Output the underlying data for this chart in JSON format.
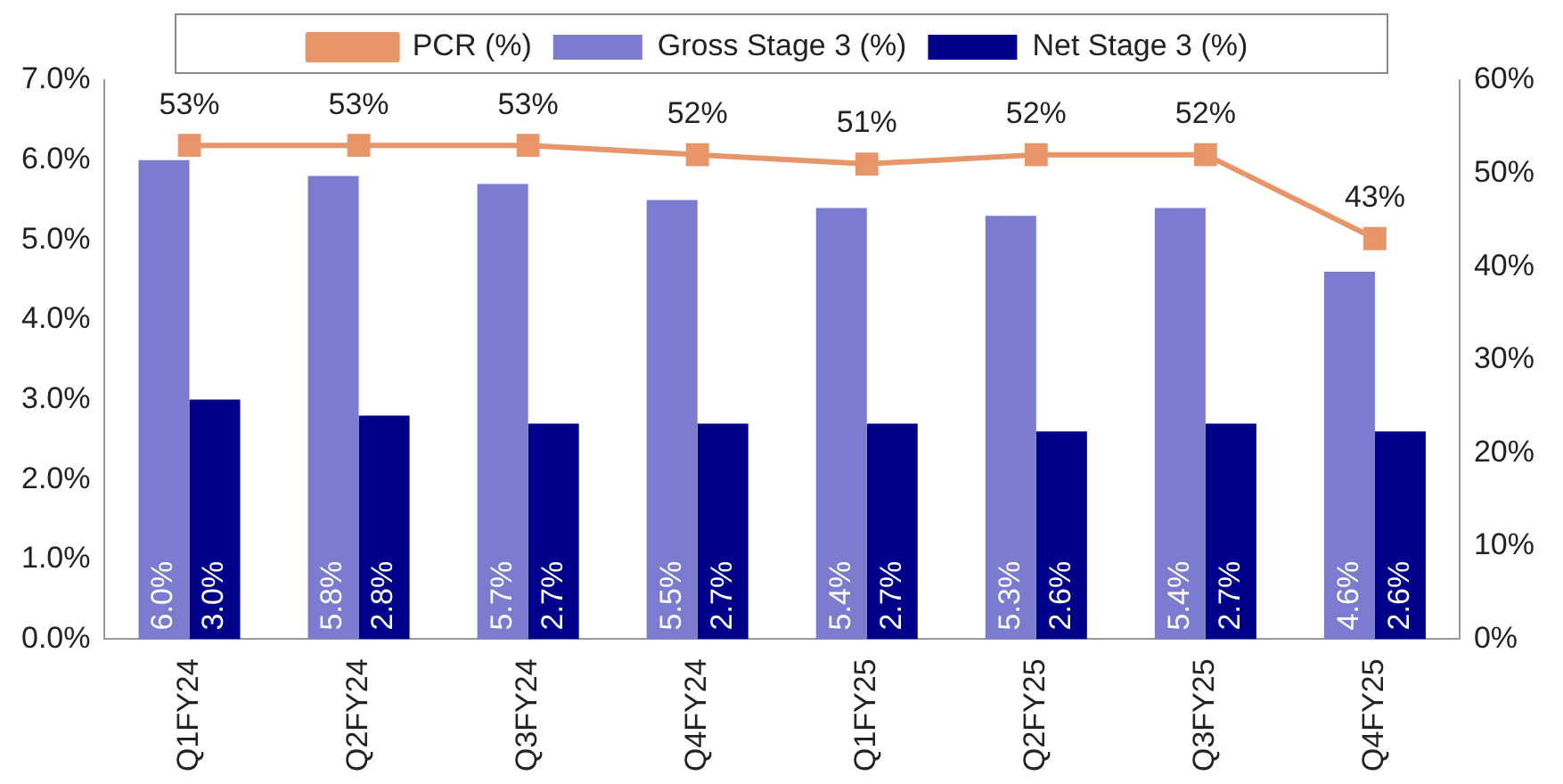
{
  "chart_data": {
    "type": "bar",
    "categories": [
      "Q1FY24",
      "Q2FY24",
      "Q3FY24",
      "Q4FY24",
      "Q1FY25",
      "Q2FY25",
      "Q3FY25",
      "Q4FY25"
    ],
    "series": [
      {
        "name": "Gross Stage 3 (%)",
        "color": "#7b7bcf",
        "values": [
          6.0,
          5.8,
          5.7,
          5.5,
          5.4,
          5.3,
          5.4,
          4.6
        ],
        "value_labels": [
          "6.0%",
          "5.8%",
          "5.7%",
          "5.5%",
          "5.4%",
          "5.3%",
          "5.4%",
          "4.6%"
        ]
      },
      {
        "name": "Net Stage 3 (%)",
        "color": "#00008b",
        "values": [
          3.0,
          2.8,
          2.7,
          2.7,
          2.7,
          2.6,
          2.7,
          2.6
        ],
        "value_labels": [
          "3.0%",
          "2.8%",
          "2.7%",
          "2.7%",
          "2.7%",
          "2.6%",
          "2.7%",
          "2.6%"
        ]
      },
      {
        "name": "PCR (%)",
        "type": "line",
        "axis": "y2",
        "color": "#e8956a",
        "values": [
          53,
          53,
          53,
          52,
          51,
          52,
          52,
          43
        ],
        "value_labels": [
          "53%",
          "53%",
          "53%",
          "52%",
          "51%",
          "52%",
          "52%",
          "43%"
        ]
      }
    ],
    "ylim": [
      0,
      7
    ],
    "yticks": [
      {
        "value": 0,
        "label": "0.0%"
      },
      {
        "value": 1,
        "label": "1.0%"
      },
      {
        "value": 2,
        "label": "2.0%"
      },
      {
        "value": 3,
        "label": "3.0%"
      },
      {
        "value": 4,
        "label": "4.0%"
      },
      {
        "value": 5,
        "label": "5.0%"
      },
      {
        "value": 6,
        "label": "6.0%"
      },
      {
        "value": 7,
        "label": "7.0%"
      }
    ],
    "y2lim": [
      0,
      60
    ],
    "y2ticks": [
      {
        "value": 0,
        "label": "0%"
      },
      {
        "value": 10,
        "label": "10%"
      },
      {
        "value": 20,
        "label": "20%"
      },
      {
        "value": 30,
        "label": "30%"
      },
      {
        "value": 40,
        "label": "40%"
      },
      {
        "value": 50,
        "label": "50%"
      },
      {
        "value": 60,
        "label": "60%"
      }
    ],
    "grid": false,
    "legend": "top",
    "marker": "square",
    "line_style": "solid"
  }
}
